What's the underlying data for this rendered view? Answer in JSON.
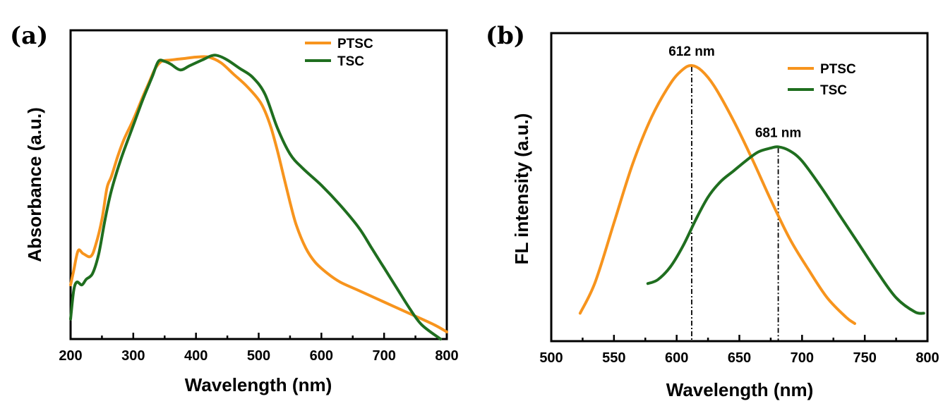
{
  "colors": {
    "PTSC": "#f7941d",
    "TSC": "#1f6e1f",
    "axis": "#000000"
  },
  "chart_data": [
    {
      "panel": "(a)",
      "type": "line",
      "xlabel": "Wavelength (nm)",
      "ylabel": "Absorbance (a.u.)",
      "xlim": [
        200,
        800
      ],
      "ylim": [
        0,
        1
      ],
      "xticks": [
        200,
        300,
        400,
        500,
        600,
        700,
        800
      ],
      "yticks_visible": false,
      "grid": false,
      "legend_position": "top-right",
      "series": [
        {
          "name": "PTSC",
          "color_key": "PTSC",
          "x": [
            200,
            205,
            212,
            220,
            232,
            240,
            250,
            258,
            265,
            275,
            285,
            300,
            315,
            325,
            335,
            345,
            360,
            380,
            400,
            420,
            440,
            460,
            480,
            500,
            510,
            520,
            530,
            540,
            550,
            560,
            575,
            590,
            610,
            630,
            660,
            700,
            740,
            780,
            800
          ],
          "y": [
            0.19,
            0.24,
            0.31,
            0.3,
            0.29,
            0.33,
            0.42,
            0.53,
            0.57,
            0.64,
            0.7,
            0.77,
            0.85,
            0.9,
            0.95,
            0.975,
            0.98,
            0.985,
            0.99,
            0.99,
            0.97,
            0.93,
            0.89,
            0.84,
            0.8,
            0.74,
            0.66,
            0.57,
            0.48,
            0.4,
            0.32,
            0.27,
            0.23,
            0.2,
            0.17,
            0.13,
            0.09,
            0.05,
            0.025
          ]
        },
        {
          "name": "TSC",
          "color_key": "TSC",
          "x": [
            200,
            205,
            210,
            218,
            225,
            235,
            245,
            255,
            265,
            280,
            300,
            315,
            330,
            340,
            350,
            360,
            375,
            390,
            410,
            425,
            435,
            450,
            470,
            490,
            510,
            530,
            550,
            570,
            600,
            630,
            660,
            680,
            700,
            720,
            740,
            760,
            790
          ],
          "y": [
            0.07,
            0.17,
            0.2,
            0.19,
            0.21,
            0.23,
            0.3,
            0.42,
            0.52,
            0.63,
            0.75,
            0.84,
            0.92,
            0.975,
            0.975,
            0.965,
            0.945,
            0.96,
            0.98,
            0.995,
            0.995,
            0.98,
            0.95,
            0.92,
            0.86,
            0.74,
            0.65,
            0.6,
            0.54,
            0.47,
            0.39,
            0.32,
            0.25,
            0.18,
            0.11,
            0.05,
            0.0
          ]
        }
      ]
    },
    {
      "panel": "(b)",
      "type": "line",
      "xlabel": "Wavelength (nm)",
      "ylabel": "FL intensity (a.u.)",
      "xlim": [
        500,
        800
      ],
      "ylim": [
        0,
        1
      ],
      "xticks": [
        500,
        550,
        600,
        650,
        700,
        750,
        800
      ],
      "yticks_visible": false,
      "grid": false,
      "legend_position": "top-right",
      "annotations": [
        {
          "text": "612 nm",
          "x": 612,
          "y": 1.0,
          "color_key": "PTSC"
        },
        {
          "text": "681 nm",
          "x": 681,
          "y": 0.685,
          "color_key": "TSC"
        }
      ],
      "series": [
        {
          "name": "PTSC",
          "color_key": "PTSC",
          "x": [
            523,
            535,
            550,
            565,
            580,
            595,
            605,
            612,
            620,
            630,
            645,
            660,
            675,
            690,
            705,
            720,
            735,
            742
          ],
          "y": [
            0.04,
            0.16,
            0.39,
            0.62,
            0.8,
            0.93,
            0.985,
            1.0,
            0.98,
            0.92,
            0.79,
            0.64,
            0.48,
            0.33,
            0.21,
            0.1,
            0.025,
            0.0
          ]
        },
        {
          "name": "TSC",
          "color_key": "TSC",
          "x": [
            577,
            585,
            595,
            605,
            615,
            625,
            635,
            645,
            655,
            665,
            675,
            681,
            690,
            700,
            715,
            730,
            745,
            760,
            775,
            790,
            797
          ],
          "y": [
            0.155,
            0.17,
            0.22,
            0.3,
            0.4,
            0.49,
            0.55,
            0.59,
            0.63,
            0.665,
            0.68,
            0.685,
            0.67,
            0.63,
            0.53,
            0.42,
            0.31,
            0.2,
            0.1,
            0.045,
            0.04
          ]
        }
      ]
    }
  ]
}
